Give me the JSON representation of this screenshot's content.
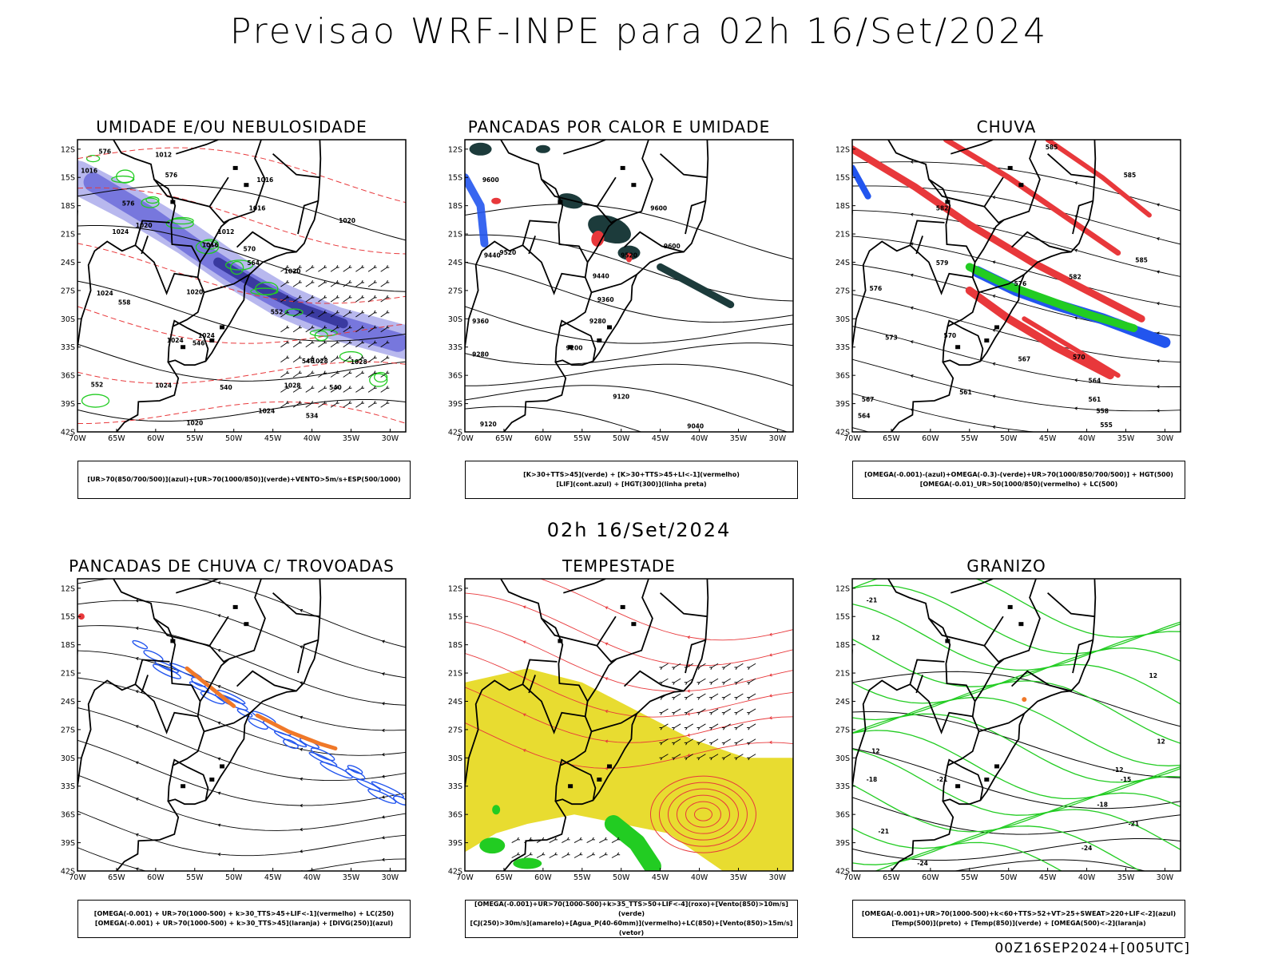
{
  "header": {
    "title": "Previsao WRF-INPE  para 02h 16/Set/2024"
  },
  "subtitle": "02h 16/Set/2024",
  "footer": "00Z16SEP2024+[005UTC]",
  "colors": {
    "red": "#e8383b",
    "green": "#22cc22",
    "blue": "#2255ee",
    "purple": "#7777dd",
    "lavender": "#b8b8ee",
    "darkteal": "#1c3b3b",
    "yellow": "#e8dc30",
    "orange": "#f07828"
  },
  "chart_data": [
    {
      "type": "contour-map",
      "title": "UMIDADE E/OU NEBULOSIDADE",
      "legend": [
        "[UR>70(850/700/500)](azul)+[UR>70(1000/850)](verde)+VENTO>5m/s+ESP(500/1000)"
      ],
      "xlim": [
        -70,
        -28
      ],
      "ylim": [
        -42,
        -11
      ],
      "xticks": [
        "70W",
        "65W",
        "60W",
        "55W",
        "50W",
        "45W",
        "40W",
        "35W",
        "30W"
      ],
      "yticks": [
        "12S",
        "15S",
        "18S",
        "21S",
        "24S",
        "27S",
        "30S",
        "33S",
        "36S",
        "39S",
        "42S"
      ],
      "labels": [
        {
          "text": "1012",
          "lon": -59,
          "lat": -12.8
        },
        {
          "text": "1016",
          "lon": -68.5,
          "lat": -14.5
        },
        {
          "text": "1016",
          "lon": -46,
          "lat": -15.5
        },
        {
          "text": "1016",
          "lon": -47,
          "lat": -18.5
        },
        {
          "text": "1020",
          "lon": -35.5,
          "lat": -19.8
        },
        {
          "text": "1020",
          "lon": -61.5,
          "lat": -20.3
        },
        {
          "text": "1024",
          "lon": -64.5,
          "lat": -21
        },
        {
          "text": "1012",
          "lon": -51,
          "lat": -21
        },
        {
          "text": "1016",
          "lon": -53,
          "lat": -22.4
        },
        {
          "text": "1020",
          "lon": -42.5,
          "lat": -25.2
        },
        {
          "text": "1020",
          "lon": -55,
          "lat": -27.4
        },
        {
          "text": "1024",
          "lon": -66.5,
          "lat": -27.5
        },
        {
          "text": "1024",
          "lon": -57.5,
          "lat": -32.5
        },
        {
          "text": "1024",
          "lon": -53.5,
          "lat": -32
        },
        {
          "text": "1028",
          "lon": -39,
          "lat": -34.7
        },
        {
          "text": "1028",
          "lon": -34,
          "lat": -34.8
        },
        {
          "text": "1028",
          "lon": -42.5,
          "lat": -37.3
        },
        {
          "text": "1024",
          "lon": -59,
          "lat": -37.3
        },
        {
          "text": "1024",
          "lon": -45.8,
          "lat": -40
        },
        {
          "text": "1020",
          "lon": -55,
          "lat": -41.3
        },
        {
          "text": "576",
          "lon": -66.5,
          "lat": -12.5
        },
        {
          "text": "576",
          "lon": -58,
          "lat": -15
        },
        {
          "text": "576",
          "lon": -63.5,
          "lat": -18
        },
        {
          "text": "570",
          "lon": -48,
          "lat": -22.8
        },
        {
          "text": "564",
          "lon": -47.5,
          "lat": -24.3
        },
        {
          "text": "558",
          "lon": -64,
          "lat": -28.5
        },
        {
          "text": "552",
          "lon": -44.5,
          "lat": -29.5
        },
        {
          "text": "546",
          "lon": -54.5,
          "lat": -32.8
        },
        {
          "text": "546",
          "lon": -40.5,
          "lat": -34.7
        },
        {
          "text": "540",
          "lon": -37,
          "lat": -37.5
        },
        {
          "text": "540",
          "lon": -51,
          "lat": -37.5
        },
        {
          "text": "534",
          "lon": -40,
          "lat": -40.5
        },
        {
          "text": "552",
          "lon": -67.5,
          "lat": -37.2
        }
      ]
    },
    {
      "type": "contour-map",
      "title": "PANCADAS POR CALOR E UMIDADE",
      "legend": [
        "[K>30+TTS>45](verde) + [K>30+TTS>45+LI<-1](vermelho)",
        "[LIF](cont.azul) + [HGT(300)](linha preta)"
      ],
      "xlim": [
        -70,
        -28
      ],
      "ylim": [
        -42,
        -11
      ],
      "xticks": [
        "70W",
        "65W",
        "60W",
        "55W",
        "50W",
        "45W",
        "40W",
        "35W",
        "30W"
      ],
      "yticks": [
        "12S",
        "15S",
        "18S",
        "21S",
        "24S",
        "27S",
        "30S",
        "33S",
        "36S",
        "39S",
        "42S"
      ],
      "labels": [
        {
          "text": "9600",
          "lon": -66.7,
          "lat": -15.5
        },
        {
          "text": "9600",
          "lon": -45.2,
          "lat": -18.5
        },
        {
          "text": "9600",
          "lon": -43.5,
          "lat": -22.5
        },
        {
          "text": "9520",
          "lon": -64.5,
          "lat": -23.2
        },
        {
          "text": "9440",
          "lon": -66.5,
          "lat": -23.5
        },
        {
          "text": "9520",
          "lon": -49,
          "lat": -23.5
        },
        {
          "text": "9440",
          "lon": -52.6,
          "lat": -25.7
        },
        {
          "text": "9360",
          "lon": -52,
          "lat": -28.2
        },
        {
          "text": "9360",
          "lon": -68,
          "lat": -30.5
        },
        {
          "text": "9280",
          "lon": -53,
          "lat": -30.5
        },
        {
          "text": "9200",
          "lon": -56,
          "lat": -33.3
        },
        {
          "text": "9280",
          "lon": -68,
          "lat": -34
        },
        {
          "text": "9120",
          "lon": -50,
          "lat": -38.5
        },
        {
          "text": "9120",
          "lon": -67,
          "lat": -41.4
        },
        {
          "text": "9040",
          "lon": -40.5,
          "lat": -41.6
        }
      ]
    },
    {
      "type": "contour-map",
      "title": "CHUVA",
      "legend": [
        "[OMEGA(-0.001)-(azul)+OMEGA(-0.3)-(verde)+UR>70(1000/850/700/500)] + HGT(500)",
        "[OMEGA(-0.01)_UR>50(1000/850)(vermelho) + LC(500)"
      ],
      "xlim": [
        -70,
        -28
      ],
      "ylim": [
        -42,
        -11
      ],
      "xticks": [
        "70W",
        "65W",
        "60W",
        "55W",
        "50W",
        "45W",
        "40W",
        "35W",
        "30W"
      ],
      "yticks": [
        "12S",
        "15S",
        "18S",
        "21S",
        "24S",
        "27S",
        "30S",
        "33S",
        "36S",
        "39S",
        "42S"
      ],
      "labels": [
        {
          "text": "585",
          "lon": -44.5,
          "lat": -12
        },
        {
          "text": "585",
          "lon": -34.5,
          "lat": -15
        },
        {
          "text": "585",
          "lon": -33,
          "lat": -24
        },
        {
          "text": "582",
          "lon": -58.5,
          "lat": -18.5
        },
        {
          "text": "582",
          "lon": -41.5,
          "lat": -25.8
        },
        {
          "text": "579",
          "lon": -58.5,
          "lat": -24.3
        },
        {
          "text": "576",
          "lon": -48.5,
          "lat": -26.5
        },
        {
          "text": "576",
          "lon": -67,
          "lat": -27
        },
        {
          "text": "573",
          "lon": -65,
          "lat": -32.2
        },
        {
          "text": "570",
          "lon": -57.5,
          "lat": -32
        },
        {
          "text": "567",
          "lon": -48,
          "lat": -34.5
        },
        {
          "text": "570",
          "lon": -41,
          "lat": -34.3
        },
        {
          "text": "564",
          "lon": -39,
          "lat": -36.8
        },
        {
          "text": "561",
          "lon": -55.5,
          "lat": -38
        },
        {
          "text": "561",
          "lon": -39,
          "lat": -38.8
        },
        {
          "text": "567",
          "lon": -68,
          "lat": -38.8
        },
        {
          "text": "558",
          "lon": -38,
          "lat": -40
        },
        {
          "text": "555",
          "lon": -37.5,
          "lat": -41.5
        },
        {
          "text": "564",
          "lon": -68.5,
          "lat": -40.5
        }
      ]
    },
    {
      "type": "contour-map",
      "title": "PANCADAS DE CHUVA C/ TROVOADAS",
      "legend": [
        "[OMEGA(-0.001) + UR>70(1000-500) + k>30_TTS>45+LIF<-1](vermelho) + LC(250)",
        "[OMEGA(-0.001) + UR>70(1000-500) + k>30_TTS>45](laranja) + [DIVG(250)](azul)"
      ],
      "xlim": [
        -70,
        -28
      ],
      "ylim": [
        -42,
        -11
      ],
      "xticks": [
        "70W",
        "65W",
        "60W",
        "55W",
        "50W",
        "45W",
        "40W",
        "35W",
        "30W"
      ],
      "yticks": [
        "12S",
        "15S",
        "18S",
        "21S",
        "24S",
        "27S",
        "30S",
        "33S",
        "36S",
        "39S",
        "42S"
      ],
      "labels": []
    },
    {
      "type": "contour-map",
      "title": "TEMPESTADE",
      "legend": [
        "[OMEGA(-0.001)+UR>70(1000-500)+k>35_TTS>50+LIF<-4](roxo)+[Vento(850)>10m/s](verde)",
        "[CJ(250)>30m/s](amarelo)+[Agua_P(40-60mm)](vermelho)+LC(850)+[Vento(850)>15m/s](vetor)"
      ],
      "xlim": [
        -70,
        -28
      ],
      "ylim": [
        -42,
        -11
      ],
      "xticks": [
        "70W",
        "65W",
        "60W",
        "55W",
        "50W",
        "45W",
        "40W",
        "35W",
        "30W"
      ],
      "yticks": [
        "12S",
        "15S",
        "18S",
        "21S",
        "24S",
        "27S",
        "30S",
        "33S",
        "36S",
        "39S",
        "42S"
      ],
      "labels": []
    },
    {
      "type": "contour-map",
      "title": "GRANIZO",
      "legend": [
        "[OMEGA(-0.001)+UR>70(1000-500)+k<60+TTS>52+VT>25+SWEAT>220+LIF<-2](azul)",
        "[Temp(500)](preto) + [Temp(850)](verde) + [OMEGA(500)<-2](laranja)"
      ],
      "xlim": [
        -70,
        -28
      ],
      "ylim": [
        -42,
        -11
      ],
      "xticks": [
        "70W",
        "65W",
        "60W",
        "55W",
        "50W",
        "45W",
        "40W",
        "35W",
        "30W"
      ],
      "yticks": [
        "12S",
        "15S",
        "18S",
        "21S",
        "24S",
        "27S",
        "30S",
        "33S",
        "36S",
        "39S",
        "42S"
      ],
      "labels": [
        {
          "text": "-21",
          "lon": -67.5,
          "lat": -13.5
        },
        {
          "text": "12",
          "lon": -67,
          "lat": -17.5
        },
        {
          "text": "12",
          "lon": -31.5,
          "lat": -21.5
        },
        {
          "text": "12",
          "lon": -30.5,
          "lat": -28.5
        },
        {
          "text": "12",
          "lon": -67,
          "lat": -29.5
        },
        {
          "text": "-18",
          "lon": -67.5,
          "lat": -32.5
        },
        {
          "text": "-21",
          "lon": -58.5,
          "lat": -32.5
        },
        {
          "text": "-12",
          "lon": -36,
          "lat": -31.5
        },
        {
          "text": "-15",
          "lon": -35,
          "lat": -32.5
        },
        {
          "text": "-18",
          "lon": -38,
          "lat": -35.2
        },
        {
          "text": "-21",
          "lon": -34,
          "lat": -37.2
        },
        {
          "text": "-21",
          "lon": -66,
          "lat": -38
        },
        {
          "text": "-24",
          "lon": -61,
          "lat": -41.4
        },
        {
          "text": "-24",
          "lon": -40,
          "lat": -39.8
        }
      ]
    }
  ]
}
